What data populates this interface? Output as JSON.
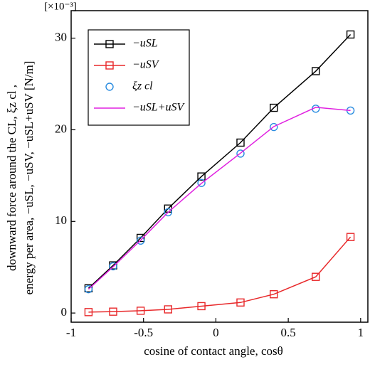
{
  "chart_data": {
    "type": "line",
    "xlabel": "cosine of contact angle, cosθ",
    "ylabel": [
      "downward force around the CL, ξz cl ,",
      "energy per area, −uSL, −uSV, −uSL+uSV [N/m]"
    ],
    "yunit": "[×10⁻³]",
    "x": [
      -0.88,
      -0.71,
      -0.52,
      -0.33,
      -0.1,
      0.17,
      0.4,
      0.69,
      0.93
    ],
    "series": [
      {
        "name": "−uSL",
        "color": "#000000",
        "marker": "square",
        "line": true,
        "values": [
          2.7,
          5.2,
          8.2,
          11.4,
          14.9,
          18.6,
          22.4,
          26.4,
          30.4
        ]
      },
      {
        "name": "−uSV",
        "color": "#e8282a",
        "marker": "square",
        "line": true,
        "values": [
          0.1,
          0.15,
          0.25,
          0.4,
          0.75,
          1.15,
          2.05,
          3.95,
          8.3
        ]
      },
      {
        "name": "ξz cl",
        "color": "#2a8ce0",
        "marker": "circle",
        "line": false,
        "values": [
          2.6,
          5.1,
          7.9,
          11.0,
          14.2,
          17.4,
          20.3,
          22.3,
          22.1
        ]
      },
      {
        "name": "−uSL+uSV",
        "color": "#e020e0",
        "marker": "none",
        "line": true,
        "values": [
          2.6,
          5.05,
          7.95,
          11.0,
          14.15,
          17.45,
          20.35,
          22.45,
          22.1
        ]
      }
    ],
    "xlim": [
      -1,
      1.05
    ],
    "xticks": [
      -1,
      -0.5,
      0,
      0.5,
      1
    ],
    "ylim": [
      -1,
      33
    ],
    "yticks": [
      0,
      10,
      20,
      30
    ],
    "legend": "upper left"
  }
}
